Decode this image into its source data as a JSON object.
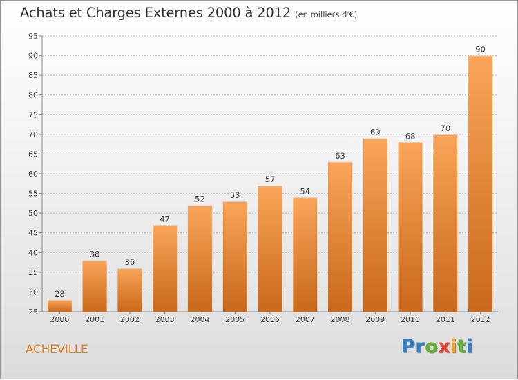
{
  "title": "Achats et Charges Externes 2000 à 2012",
  "unit": "(en milliers d'€)",
  "commune": "ACHEVILLE",
  "logo": {
    "letters": [
      "P",
      "r",
      "o",
      "x",
      "i",
      "t",
      "i"
    ],
    "colors": [
      "#2e7fc9",
      "#2e7fc9",
      "#5fb330",
      "#e8412c",
      "#f2a21c",
      "#5fb330",
      "#2e7fc9"
    ]
  },
  "colors": {
    "bar_top": "#f9a559",
    "bar_bottom": "#c9681a",
    "axis": "#888888",
    "grid": "#bdbdbd",
    "text": "#444444"
  },
  "chart_data": {
    "type": "bar",
    "categories": [
      "2000",
      "2001",
      "2002",
      "2003",
      "2004",
      "2005",
      "2006",
      "2007",
      "2008",
      "2009",
      "2010",
      "2011",
      "2012"
    ],
    "values": [
      28,
      38,
      36,
      47,
      52,
      53,
      57,
      54,
      63,
      69,
      68,
      70,
      90
    ],
    "ylim": [
      25,
      95
    ],
    "yticks": [
      25,
      30,
      35,
      40,
      45,
      50,
      55,
      60,
      65,
      70,
      75,
      80,
      85,
      90,
      95
    ],
    "grid": true,
    "data_labels": true
  }
}
